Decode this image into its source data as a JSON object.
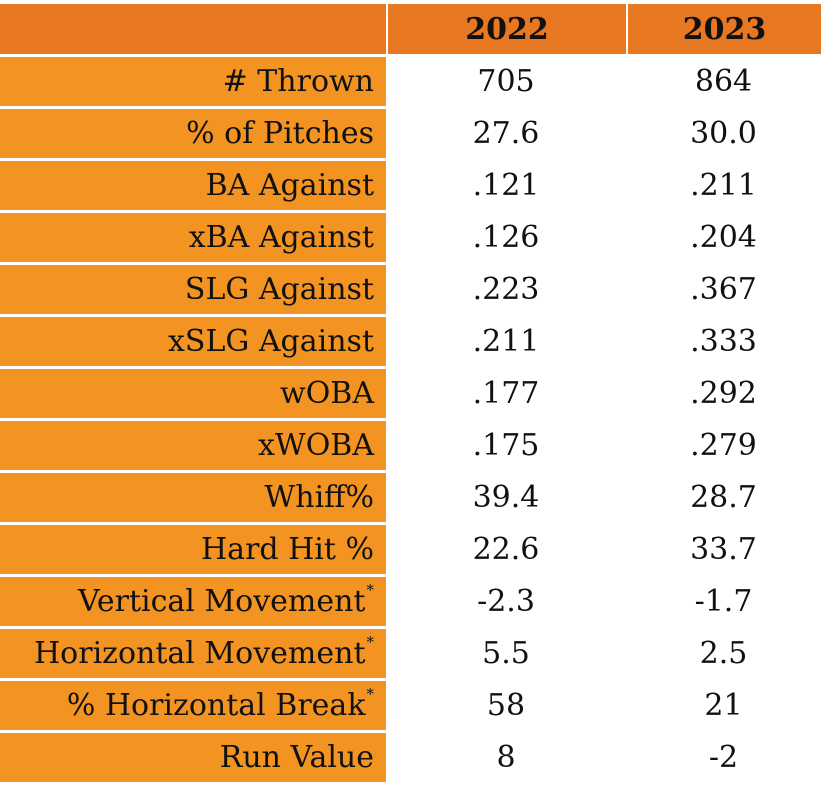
{
  "colors": {
    "header_bg": "#E87722",
    "label_bg": "#F39322",
    "value_bg": "#FFFFFF",
    "text": "#111111",
    "separator": "#FFFFFF"
  },
  "header": {
    "col1": "2022",
    "col2": "2023"
  },
  "rows": [
    {
      "label": "# Thrown",
      "asterisk": "",
      "v2022": "705",
      "v2023": "864"
    },
    {
      "label": "% of Pitches",
      "asterisk": "",
      "v2022": "27.6",
      "v2023": "30.0"
    },
    {
      "label": "BA Against",
      "asterisk": "",
      "v2022": ".121",
      "v2023": ".211"
    },
    {
      "label": "xBA Against",
      "asterisk": "",
      "v2022": ".126",
      "v2023": ".204"
    },
    {
      "label": "SLG Against",
      "asterisk": "",
      "v2022": ".223",
      "v2023": ".367"
    },
    {
      "label": "xSLG Against",
      "asterisk": "",
      "v2022": ".211",
      "v2023": ".333"
    },
    {
      "label": "wOBA",
      "asterisk": "",
      "v2022": ".177",
      "v2023": ".292"
    },
    {
      "label": "xWOBA",
      "asterisk": "",
      "v2022": ".175",
      "v2023": ".279"
    },
    {
      "label": "Whiff%",
      "asterisk": "",
      "v2022": "39.4",
      "v2023": "28.7"
    },
    {
      "label": "Hard Hit %",
      "asterisk": "",
      "v2022": "22.6",
      "v2023": "33.7"
    },
    {
      "label": "Vertical Movement",
      "asterisk": "*",
      "v2022": "-2.3",
      "v2023": "-1.7"
    },
    {
      "label": "Horizontal Movement",
      "asterisk": "*",
      "v2022": "5.5",
      "v2023": "2.5"
    },
    {
      "label": "% Horizontal Break",
      "asterisk": "*",
      "v2022": "58",
      "v2023": "21"
    },
    {
      "label": "Run Value",
      "asterisk": "",
      "v2022": "8",
      "v2023": "-2"
    }
  ]
}
